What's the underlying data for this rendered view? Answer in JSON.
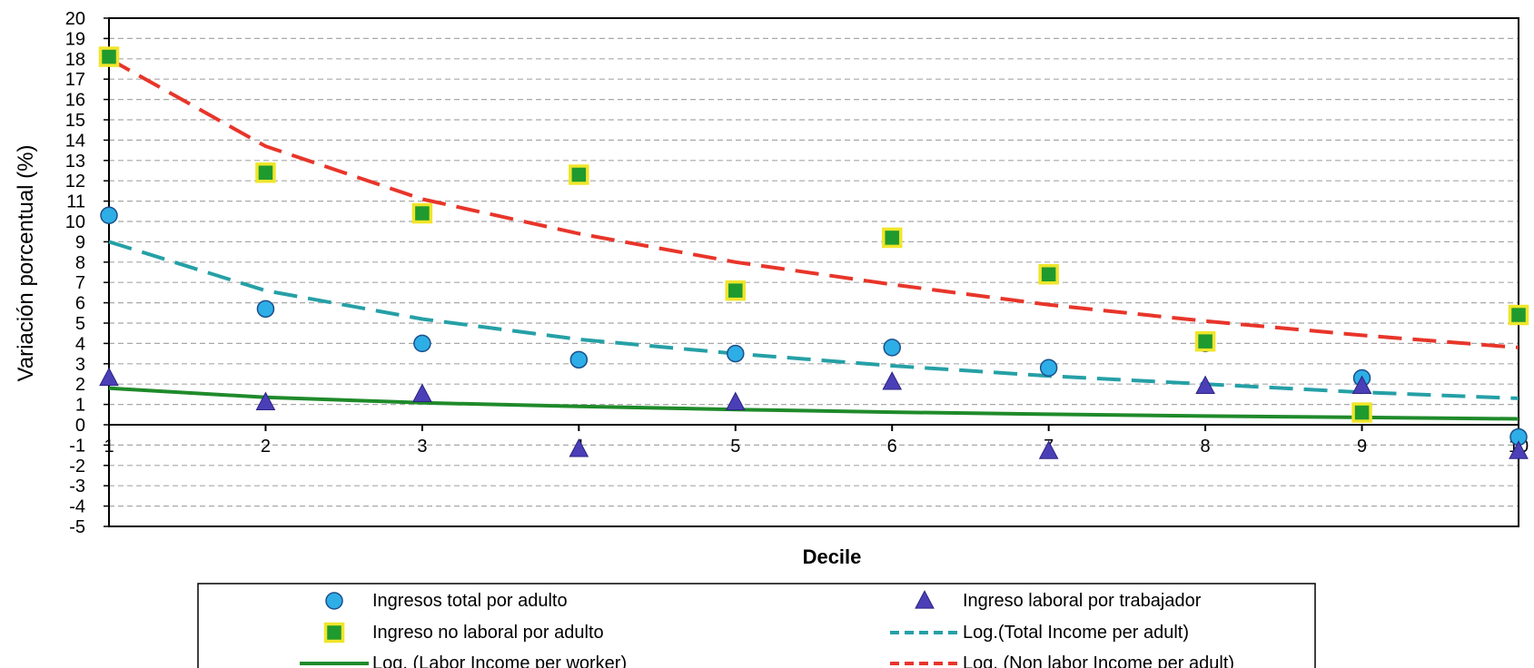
{
  "chart_data": {
    "type": "scatter",
    "title": "",
    "xlabel": "Decile",
    "ylabel": "Variación porcentual (%)",
    "x": [
      1,
      2,
      3,
      4,
      5,
      6,
      7,
      8,
      9,
      10
    ],
    "xlim": [
      1,
      10
    ],
    "ylim": [
      -5,
      20
    ],
    "ytick_step": 1,
    "grid": "horizontal dashed",
    "legend_position": "bottom",
    "series": [
      {
        "name": "Ingresos total por adulto",
        "kind": "markers",
        "marker": "circle",
        "color": "#2eaee6",
        "values": [
          10.3,
          5.7,
          4.0,
          3.2,
          3.5,
          3.8,
          2.8,
          4.0,
          2.3,
          -0.6
        ]
      },
      {
        "name": "Ingreso laboral por trabajador",
        "kind": "markers",
        "marker": "triangle",
        "color": "#4b3fb8",
        "values": [
          2.3,
          1.1,
          1.5,
          -1.2,
          1.1,
          2.1,
          -1.3,
          1.9,
          1.9,
          -1.3
        ]
      },
      {
        "name": "Ingreso no laboral por adulto",
        "kind": "markers",
        "marker": "square",
        "color": "#1f9a2e",
        "edge_color": "#f0e52a",
        "values": [
          18.1,
          12.4,
          10.4,
          12.3,
          6.6,
          9.2,
          7.4,
          4.1,
          0.6,
          5.4
        ]
      },
      {
        "name": "Log.(Total Income per adult)",
        "kind": "log-trend",
        "line_style": "dashed",
        "color": "#25a0a6",
        "values": [
          9.0,
          6.6,
          5.2,
          4.2,
          3.5,
          2.9,
          2.4,
          2.0,
          1.6,
          1.3
        ]
      },
      {
        "name": "Log. (Labor Income per worker)",
        "kind": "log-trend",
        "line_style": "solid",
        "color": "#1f8a2a",
        "values": [
          1.8,
          1.35,
          1.08,
          0.9,
          0.75,
          0.62,
          0.52,
          0.43,
          0.36,
          0.29
        ]
      },
      {
        "name": "Log. (Non labor Income per adult)",
        "kind": "log-trend",
        "line_style": "dashed",
        "color": "#e8352a",
        "values": [
          18.0,
          13.7,
          11.1,
          9.4,
          8.0,
          6.9,
          5.9,
          5.1,
          4.4,
          3.8
        ]
      }
    ],
    "legend_order": [
      0,
      1,
      2,
      3,
      4,
      5
    ]
  }
}
